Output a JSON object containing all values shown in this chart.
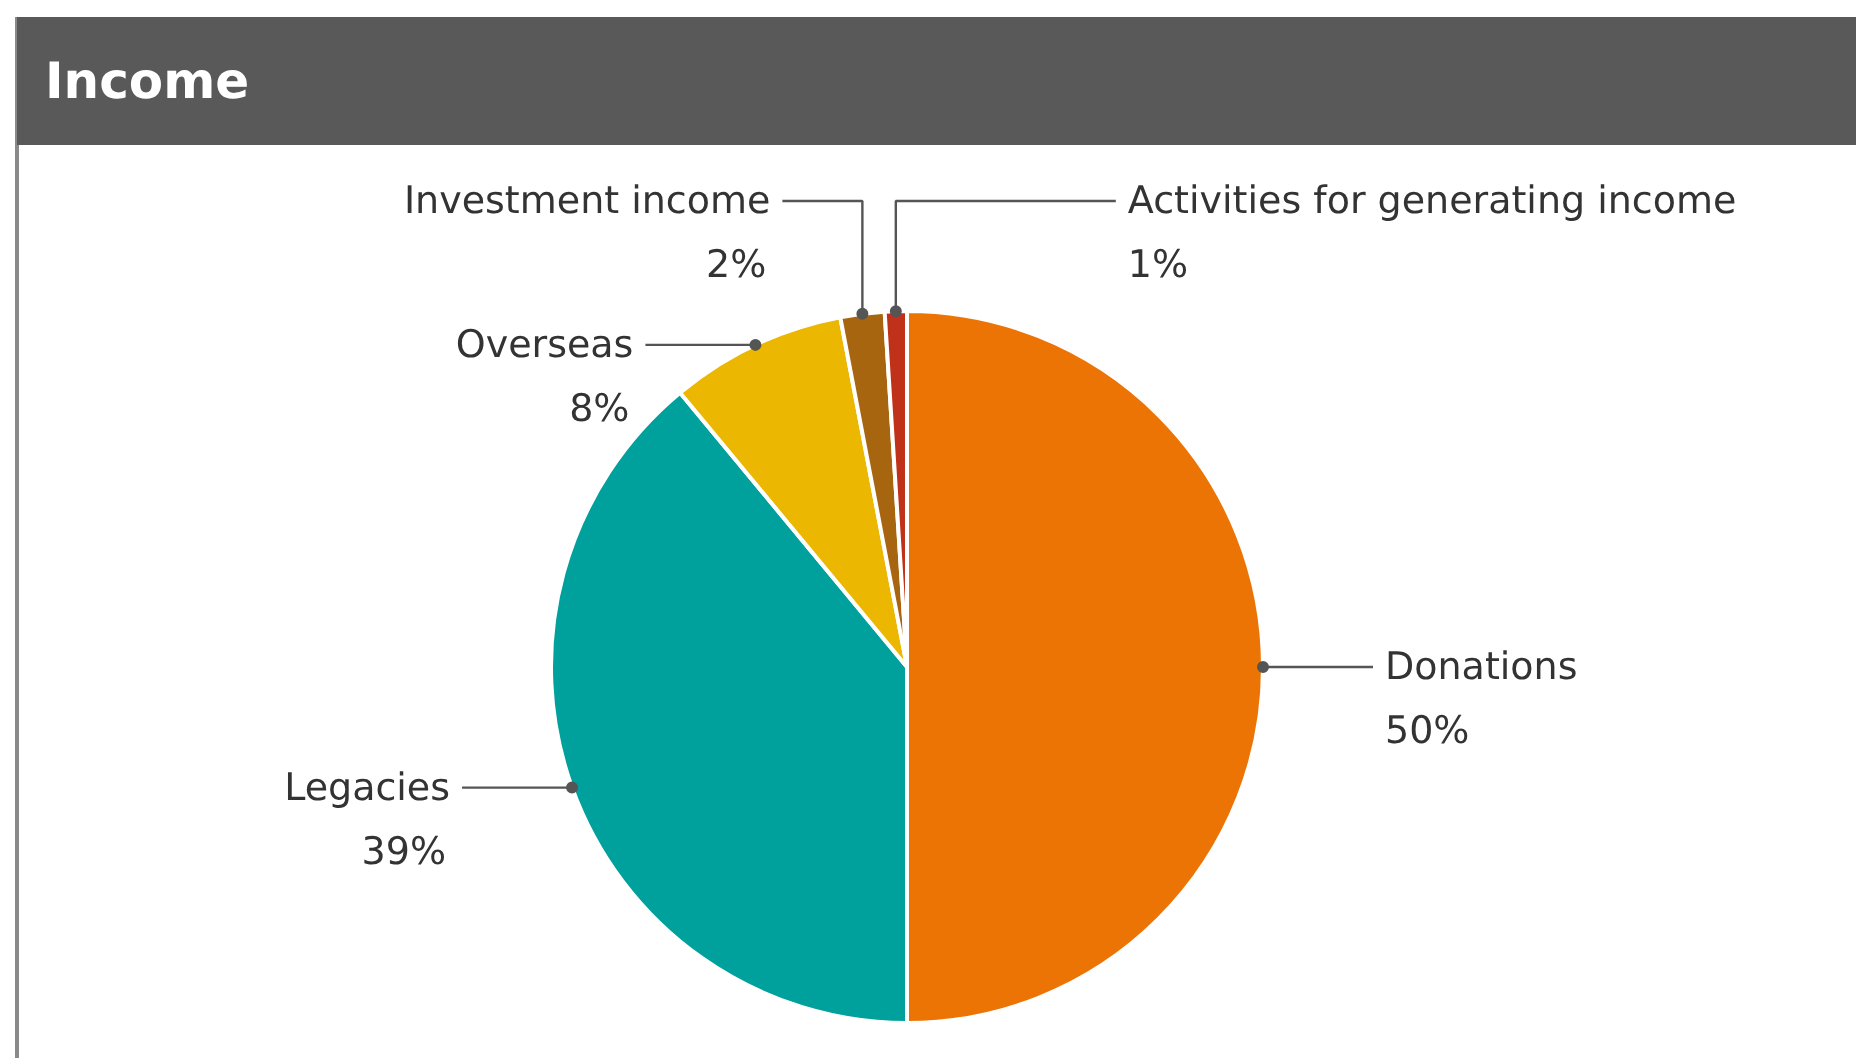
{
  "chart_data": {
    "type": "pie",
    "title": "Income",
    "categories": [
      "Donations",
      "Legacies",
      "Overseas",
      "Investment income",
      "Activities for generating income"
    ],
    "values": [
      50,
      39,
      8,
      2,
      1
    ],
    "value_labels": [
      "50%",
      "39%",
      "8%",
      "2%",
      "1%"
    ],
    "colors": [
      "#ec7404",
      "#00a09d",
      "#ebb700",
      "#a8650f",
      "#c0311a"
    ]
  }
}
